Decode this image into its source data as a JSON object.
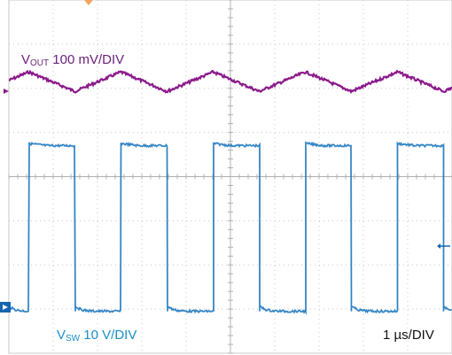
{
  "labels": {
    "vout": {
      "main": "V",
      "sub": "OUT",
      "rest": " 100 mV/DIV"
    },
    "vsw": {
      "main": "V",
      "sub": "SW",
      "rest": " 10 V/DIV"
    },
    "time": {
      "main": "1 ",
      "mu": "µ",
      "rest": "s/DIV"
    }
  },
  "colors": {
    "vout": "#8b1a8b",
    "vsw": "#1565b0",
    "vsw_light": "#2aa0dc",
    "grid": "#c8c8c8",
    "trigger": "#f4a460",
    "label_vout": "#6a1f7a",
    "label_vsw": "#1a8fc8",
    "label_time": "#111111"
  },
  "chart_data": {
    "type": "line",
    "x_divisions": 10,
    "y_divisions": 8,
    "time_per_div": "1 µs",
    "series": [
      {
        "name": "VOUT",
        "scale": "100 mV/DIV",
        "shape": "triangle",
        "period_div": 2.08,
        "amplitude_div": 0.22,
        "center_div": 1.85,
        "first_peak_div": 0.45
      },
      {
        "name": "VSW",
        "scale": "10 V/DIV",
        "shape": "square",
        "period_div": 2.08,
        "high_level_div": 3.25,
        "low_level_div": 7.05,
        "rising_edges_div": [
          0.46,
          2.53,
          4.62,
          6.7,
          8.77
        ],
        "falling_edges_div": [
          1.5,
          3.58,
          5.66,
          7.73,
          9.81
        ]
      }
    ]
  }
}
